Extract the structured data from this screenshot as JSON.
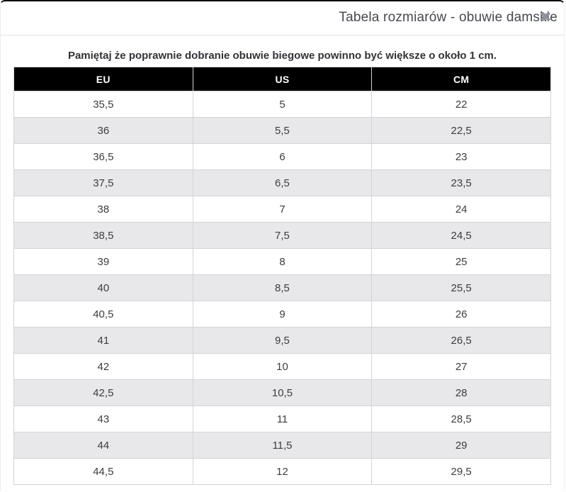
{
  "modal": {
    "title": "Tabela rozmiarów - obuwie damskie",
    "close_icon": "✖"
  },
  "note": "Pamiętaj że poprawnie dobranie obuwie biegowe powinno być większe o około 1 cm.",
  "table": {
    "columns": [
      "EU",
      "US",
      "CM"
    ],
    "rows": [
      [
        "35,5",
        "5",
        "22"
      ],
      [
        "36",
        "5,5",
        "22,5"
      ],
      [
        "36,5",
        "6",
        "23"
      ],
      [
        "37,5",
        "6,5",
        "23,5"
      ],
      [
        "38",
        "7",
        "24"
      ],
      [
        "38,5",
        "7,5",
        "24,5"
      ],
      [
        "39",
        "8",
        "25"
      ],
      [
        "40",
        "8,5",
        "25,5"
      ],
      [
        "40,5",
        "9",
        "26"
      ],
      [
        "41",
        "9,5",
        "26,5"
      ],
      [
        "42",
        "10",
        "27"
      ],
      [
        "42,5",
        "10,5",
        "28"
      ],
      [
        "43",
        "11",
        "28,5"
      ],
      [
        "44",
        "11,5",
        "29"
      ],
      [
        "44,5",
        "12",
        "29,5"
      ]
    ]
  },
  "colors": {
    "header_bg": "#000000",
    "header_text": "#ffffff",
    "row_alt_bg": "#e8e7ea",
    "cell_border": "#d4d3d7",
    "body_text": "#3b3d41",
    "title_text": "#46494e",
    "note_text": "#323338",
    "divider": "#e3e3e6",
    "close_icon": "#8d919a",
    "top_border": "#0b0b0b"
  }
}
